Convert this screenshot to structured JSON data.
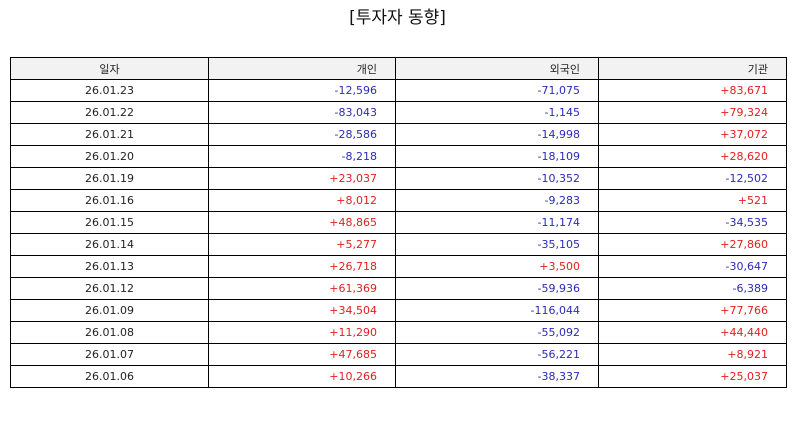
{
  "title": "[투자자 동향]",
  "columns": [
    "일자",
    "개인",
    "외국인",
    "기관"
  ],
  "rows": [
    [
      "26.01.23",
      "-12,596",
      "-71,075",
      "+83,671"
    ],
    [
      "26.01.22",
      "-83,043",
      "-1,145",
      "+79,324"
    ],
    [
      "26.01.21",
      "-28,586",
      "-14,998",
      "+37,072"
    ],
    [
      "26.01.20",
      "-8,218",
      "-18,109",
      "+28,620"
    ],
    [
      "26.01.19",
      "+23,037",
      "-10,352",
      "-12,502"
    ],
    [
      "26.01.16",
      "+8,012",
      "-9,283",
      "+521"
    ],
    [
      "26.01.15",
      "+48,865",
      "-11,174",
      "-34,535"
    ],
    [
      "26.01.14",
      "+5,277",
      "-35,105",
      "+27,860"
    ],
    [
      "26.01.13",
      "+26,718",
      "+3,500",
      "-30,647"
    ],
    [
      "26.01.12",
      "+61,369",
      "-59,936",
      "-6,389"
    ],
    [
      "26.01.09",
      "+34,504",
      "-116,044",
      "+77,766"
    ],
    [
      "26.01.08",
      "+11,290",
      "-55,092",
      "+44,440"
    ],
    [
      "26.01.07",
      "+47,685",
      "-56,221",
      "+8,921"
    ],
    [
      "26.01.06",
      "+10,266",
      "-38,337",
      "+25,037"
    ]
  ],
  "colors": {
    "positive": "#e02020",
    "negative": "#2b2bb5",
    "header_bg": "#f2f2f2"
  }
}
